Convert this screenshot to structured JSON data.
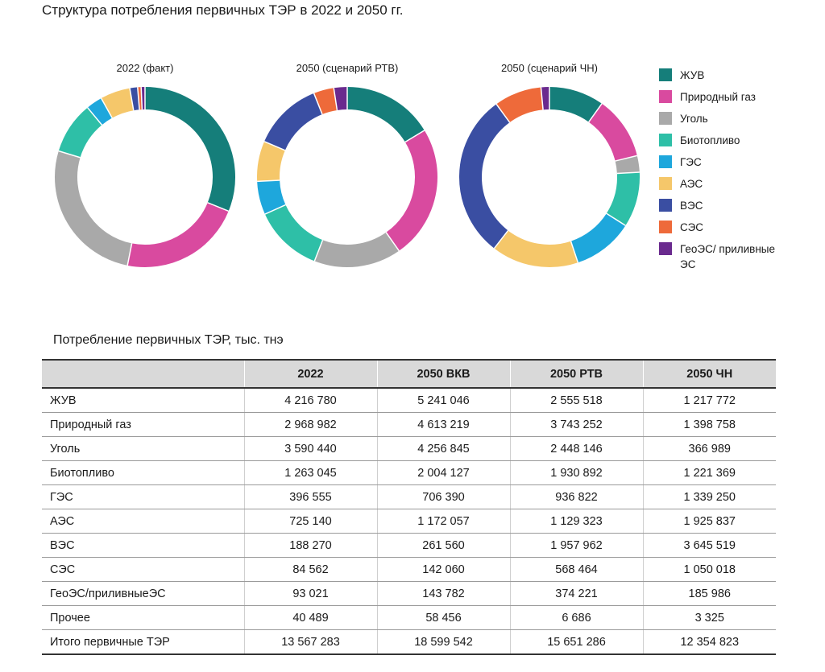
{
  "title": "Структура потребления первичных ТЭР в 2022 и 2050 гг.",
  "chart_data": {
    "type": "pie",
    "donut": true,
    "charts": [
      {
        "label": "2022 (факт)",
        "values": [
          4216780,
          2968982,
          3590440,
          1263045,
          396555,
          725140,
          188270,
          84562,
          93021
        ]
      },
      {
        "label": "2050 (сценарий РТВ)",
        "values": [
          2555518,
          3743252,
          2448146,
          1930892,
          936822,
          1129323,
          1957962,
          568464,
          374221
        ]
      },
      {
        "label": "2050 (сценарий ЧН)",
        "values": [
          1217772,
          1398758,
          366989,
          1221369,
          1339250,
          1925837,
          3645519,
          1050018,
          185986
        ]
      }
    ],
    "categories": [
      "ЖУВ",
      "Природный газ",
      "Уголь",
      "Биотопливо",
      "ГЭС",
      "АЭС",
      "ВЭС",
      "СЭС",
      "ГеоЭС/приливныеЭС"
    ],
    "legend_placement": "right"
  },
  "legend": [
    {
      "label": "ЖУВ",
      "color": "#157e7a"
    },
    {
      "label": "Природный газ",
      "color": "#d94a9f"
    },
    {
      "label": "Уголь",
      "color": "#a9a9a9"
    },
    {
      "label": "Биотопливо",
      "color": "#2ebfa7"
    },
    {
      "label": "ГЭС",
      "color": "#1ea7dc"
    },
    {
      "label": "АЭС",
      "color": "#f5c76a"
    },
    {
      "label": "ВЭС",
      "color": "#3a4ea2"
    },
    {
      "label": "СЭС",
      "color": "#ee6a3a"
    },
    {
      "label": "ГеоЭС/ приливныеЭС",
      "color": "#6a2a8e"
    }
  ],
  "table": {
    "title": "Потребление первичных ТЭР, тыс. тнэ",
    "headers": [
      "",
      "2022",
      "2050 ВКВ",
      "2050 РТВ",
      "2050 ЧН"
    ],
    "rows": [
      [
        "ЖУВ",
        "4 216 780",
        "5 241 046",
        "2 555 518",
        "1 217 772"
      ],
      [
        "Природный газ",
        "2 968 982",
        "4 613 219",
        "3 743 252",
        "1 398 758"
      ],
      [
        "Уголь",
        "3 590 440",
        "4 256 845",
        "2 448 146",
        "366 989"
      ],
      [
        "Биотопливо",
        "1 263 045",
        "2 004 127",
        "1 930 892",
        "1 221 369"
      ],
      [
        "ГЭС",
        "396 555",
        "706 390",
        "936 822",
        "1 339 250"
      ],
      [
        "АЭС",
        "725 140",
        "1 172 057",
        "1 129 323",
        "1 925 837"
      ],
      [
        "ВЭС",
        "188 270",
        "261 560",
        "1 957 962",
        "3 645 519"
      ],
      [
        "СЭС",
        "84 562",
        "142 060",
        "568 464",
        "1 050 018"
      ],
      [
        "ГеоЭС/приливныеЭС",
        "93 021",
        "143 782",
        "374 221",
        "185 986"
      ],
      [
        "Прочее",
        "40 489",
        "58 456",
        "6 686",
        "3 325"
      ],
      [
        "Итого первичные ТЭР",
        "13 567 283",
        "18 599 542",
        "15 651 286",
        "12 354 823"
      ]
    ]
  }
}
